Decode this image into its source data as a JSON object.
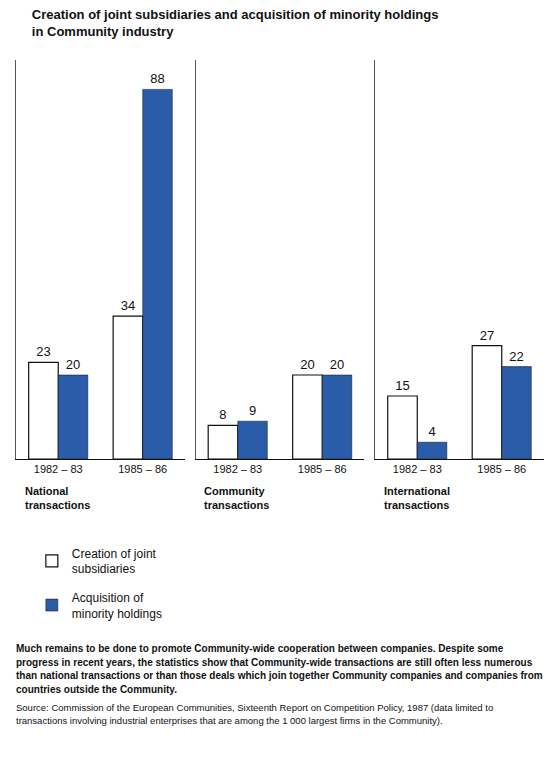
{
  "title": "Creation of joint subsidiaries and acquisition of minority holdings in Community industry",
  "caption": "Much remains to be done to promote Community-wide cooperation between companies. Despite some progress in recent years, the statistics show that Community-wide transactions are still often less numerous than national transactions or than those deals which join together Community companies and companies from countries outside the Community.",
  "source": "Source: Commission of the European Communities, Sixteenth Report on Competition Policy, 1987 (data limited to transactions involving industrial enterprises that are among the 1 000 largest firms in the Community).",
  "chart_data": [
    {
      "type": "bar",
      "title": "National transactions",
      "categories": [
        "1982 – 83",
        "1985 – 86"
      ],
      "series": [
        {
          "name": "Creation of joint subsidiaries",
          "color": "#ffffff",
          "values": [
            23,
            34
          ]
        },
        {
          "name": "Acquisition of minority holdings",
          "color": "#2a5caa",
          "values": [
            20,
            88
          ]
        }
      ],
      "ylim": [
        0,
        95
      ],
      "tick_labels": "x",
      "data_labels": true,
      "grid": false,
      "legend": "bottom"
    },
    {
      "type": "bar",
      "title": "Community transactions",
      "categories": [
        "1982 – 83",
        "1985 – 86"
      ],
      "series": [
        {
          "name": "Creation of joint subsidiaries",
          "color": "#ffffff",
          "values": [
            8,
            20
          ]
        },
        {
          "name": "Acquisition of minority holdings",
          "color": "#2a5caa",
          "values": [
            9,
            20
          ]
        }
      ],
      "ylim": [
        0,
        95
      ],
      "tick_labels": "x",
      "data_labels": true,
      "grid": false
    },
    {
      "type": "bar",
      "title": "International transactions",
      "categories": [
        "1982 – 83",
        "1985 – 86"
      ],
      "series": [
        {
          "name": "Creation of joint subsidiaries",
          "color": "#ffffff",
          "values": [
            15,
            27
          ]
        },
        {
          "name": "Acquisition of minority holdings",
          "color": "#2a5caa",
          "values": [
            4,
            22
          ]
        }
      ],
      "ylim": [
        0,
        95
      ],
      "tick_labels": "x",
      "data_labels": true,
      "grid": false
    }
  ]
}
